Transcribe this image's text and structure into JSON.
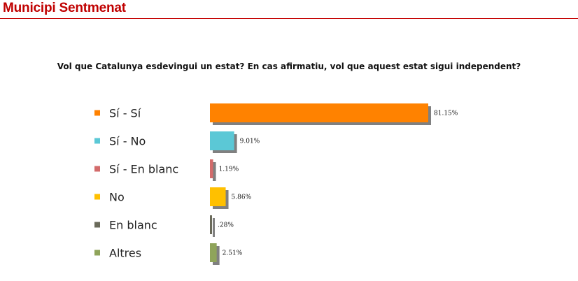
{
  "header": {
    "title": "Municipi Sentmenat"
  },
  "chart_data": {
    "type": "bar",
    "orientation": "horizontal",
    "title": "Vol que Catalunya esdevingui un estat? En cas afirmatiu, vol que aquest estat sigui independent?",
    "categories": [
      "Sí - Sí",
      "Sí - No",
      "Sí - En blanc",
      "No",
      "En blanc",
      "Altres"
    ],
    "values": [
      81.15,
      9.01,
      1.19,
      5.86,
      0.28,
      2.51
    ],
    "value_labels": [
      "81.15%",
      "9.01%",
      "1.19%",
      "5.86%",
      ".28%",
      "2.51%"
    ],
    "colors": [
      "#ff8200",
      "#5bc8d6",
      "#d36b6b",
      "#ffc000",
      "#6a6a5a",
      "#8fa45a"
    ],
    "shadow_color": "#808080",
    "xlim": [
      0,
      100
    ],
    "legend": "left",
    "grid": false
  }
}
